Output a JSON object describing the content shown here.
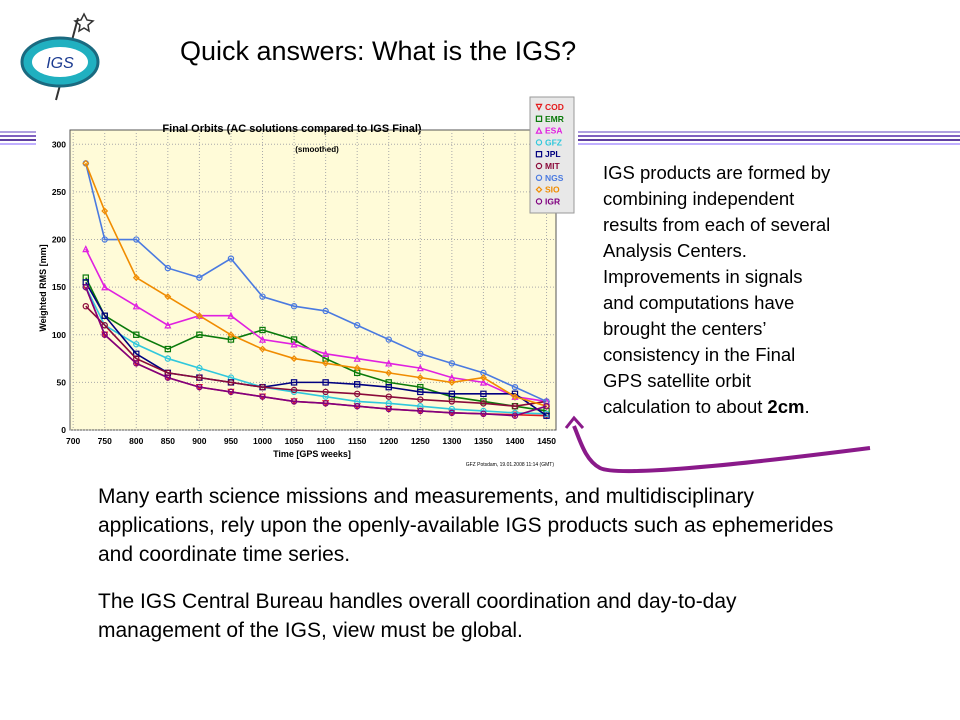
{
  "header": {
    "title": "Quick answers: What is the IGS?",
    "logo": "IGS"
  },
  "chart": {
    "type": "line",
    "title": "Final Orbits (AC solutions compared to IGS Final)",
    "subtitle": "(smoothed)",
    "y_label": "Weighted RMS [mm]",
    "x_label": "Time [GPS weeks]",
    "footnote": "GFZ Potsdam, 19.01.2008 11:14 (GMT)",
    "x": [
      720,
      750,
      800,
      850,
      900,
      950,
      1000,
      1050,
      1100,
      1150,
      1200,
      1250,
      1300,
      1350,
      1400,
      1450
    ],
    "xlim": [
      695,
      1465
    ],
    "ylim": [
      0,
      315
    ],
    "xticks": [
      700,
      750,
      800,
      850,
      900,
      950,
      1000,
      1050,
      1100,
      1150,
      1200,
      1250,
      1300,
      1350,
      1400,
      1450
    ],
    "yticks": [
      0,
      50,
      100,
      150,
      200,
      250,
      300
    ],
    "grid": true,
    "series": [
      {
        "name": "COD",
        "color": "#e41a1c",
        "marker": "triangle-down",
        "values": [
          150,
          100,
          70,
          55,
          45,
          40,
          35,
          30,
          28,
          25,
          22,
          20,
          18,
          17,
          16,
          15
        ]
      },
      {
        "name": "EMR",
        "color": "#0a7a0a",
        "marker": "square",
        "values": [
          160,
          120,
          100,
          85,
          100,
          95,
          105,
          95,
          75,
          60,
          50,
          45,
          35,
          30,
          25,
          20
        ]
      },
      {
        "name": "ESA",
        "color": "#e020e0",
        "marker": "triangle-up",
        "values": [
          190,
          150,
          130,
          110,
          120,
          120,
          95,
          90,
          80,
          75,
          70,
          65,
          55,
          50,
          35,
          30
        ]
      },
      {
        "name": "GFZ",
        "color": "#30c8dc",
        "marker": "circle",
        "values": [
          150,
          110,
          90,
          75,
          65,
          55,
          45,
          40,
          35,
          30,
          28,
          25,
          22,
          20,
          18,
          17
        ]
      },
      {
        "name": "JPL",
        "color": "#000080",
        "marker": "square",
        "values": [
          155,
          120,
          80,
          60,
          55,
          50,
          45,
          50,
          50,
          48,
          45,
          40,
          38,
          38,
          38,
          15
        ]
      },
      {
        "name": "MIT",
        "color": "#8b0a3a",
        "marker": "circle",
        "values": [
          130,
          110,
          75,
          60,
          55,
          50,
          45,
          42,
          40,
          38,
          35,
          32,
          30,
          28,
          25,
          30
        ]
      },
      {
        "name": "NGS",
        "color": "#4a7ae0",
        "marker": "circle",
        "values": [
          280,
          200,
          200,
          170,
          160,
          180,
          140,
          130,
          125,
          110,
          95,
          80,
          70,
          60,
          45,
          30
        ]
      },
      {
        "name": "SIO",
        "color": "#f08c00",
        "marker": "diamond",
        "values": [
          280,
          230,
          160,
          140,
          120,
          100,
          85,
          75,
          70,
          65,
          60,
          55,
          50,
          55,
          35,
          25
        ]
      },
      {
        "name": "IGR",
        "color": "#800080",
        "marker": "circle",
        "values": [
          150,
          100,
          70,
          55,
          45,
          40,
          35,
          30,
          28,
          25,
          22,
          20,
          18,
          17,
          15,
          25
        ]
      }
    ]
  },
  "side_text": {
    "lines": [
      "IGS products are formed by",
      "combining independent",
      "results from each of several",
      "Analysis Centers.",
      "Improvements in signals",
      "and computations have",
      "brought the centers’",
      "consistency in the Final",
      "GPS satellite orbit",
      "calculation to about"
    ],
    "bold": "2cm",
    "end": "."
  },
  "body": [
    "Many earth science missions and measurements, and multidisciplinary applications, rely upon the openly-available IGS products such as ephemerides and coordinate time series.",
    "The IGS Central Bureau handles overall coordination and day-to-day management of the IGS, view must be global."
  ]
}
